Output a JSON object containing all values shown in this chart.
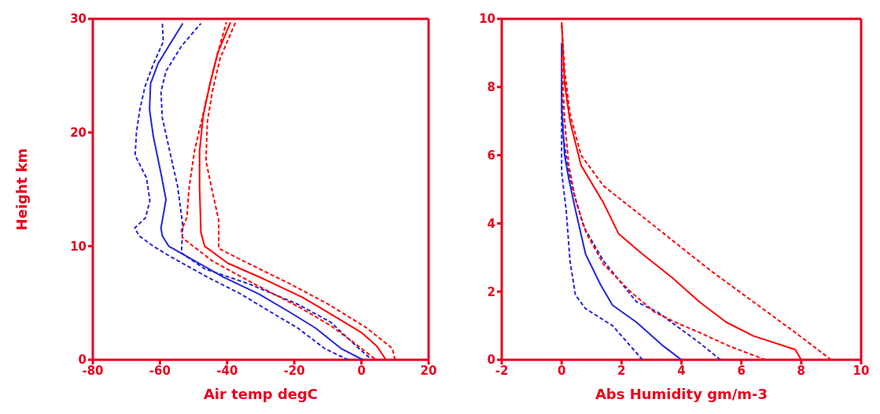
{
  "chart_data": [
    {
      "type": "line",
      "xlabel": "Air temp degC",
      "ylabel": "Height km",
      "xlim": [
        -80,
        20
      ],
      "xticks": [
        -80,
        -60,
        -40,
        -20,
        0,
        20
      ],
      "ylim": [
        0,
        30
      ],
      "yticks": [
        0,
        10,
        20,
        30
      ],
      "series": [
        {
          "color": "#2424d8",
          "line_style": "solid",
          "x": [
            0.4,
            -6.1,
            -13.7,
            -21.4,
            -30.6,
            -41.3,
            -52,
            -57.4,
            -59.3,
            -59.7,
            -58.2,
            -59.7,
            -62,
            -63.1,
            -62.8,
            -60.5,
            -57.4,
            -53.2
          ],
          "values": [
            0,
            1,
            2.8,
            4.2,
            5.8,
            7.3,
            9.1,
            10,
            10.9,
            11.6,
            14.1,
            16.4,
            19.7,
            22,
            24.3,
            26.1,
            27.6,
            29.6
          ]
        },
        {
          "color": "#2424d8",
          "line_style": "dashed",
          "x": [
            -4,
            -11,
            -19,
            -27,
            -36,
            -46,
            -57,
            -62,
            -66.2,
            -67.5,
            -64.3,
            -63,
            -64,
            -67.4,
            -67,
            -66,
            -64.5,
            -62,
            -59,
            -59.3
          ],
          "values": [
            0,
            1,
            2.8,
            4.2,
            5.8,
            7.3,
            9.1,
            10,
            10.9,
            11.6,
            12.5,
            14,
            16,
            18,
            20,
            22,
            24,
            26,
            28,
            29.7
          ]
        },
        {
          "color": "#2424d8",
          "line_style": "dashed",
          "x": [
            2.3,
            -1.5,
            -9.1,
            -19,
            -33.7,
            -46.7,
            -53.6,
            -53.2,
            -54.7,
            -56.6,
            -59.3,
            -59.7,
            -58.2,
            -53.6,
            -47.8
          ],
          "values": [
            0.2,
            1.2,
            3.3,
            4.9,
            6.7,
            8,
            9.4,
            11.8,
            15.2,
            17.7,
            21.3,
            23.6,
            25.4,
            27.6,
            29.6
          ]
        },
        {
          "color": "#ff0000",
          "line_style": "solid",
          "x": [
            7.3,
            4.6,
            0,
            -8.4,
            -17.6,
            -29,
            -39.8,
            -46.7,
            -47.8,
            -48.2,
            -48.2,
            -47.1,
            -45.1,
            -42.8,
            -39
          ],
          "values": [
            0,
            1.2,
            2.4,
            3.9,
            5.5,
            7.1,
            8.5,
            10,
            11.2,
            15.2,
            18.4,
            21.5,
            24.3,
            27,
            29.7
          ]
        },
        {
          "color": "#ff0000",
          "line_style": "dashed",
          "x": [
            3.9,
            -2.2,
            -9.1,
            -18.3,
            -32.1,
            -44.4,
            -53.2,
            -53.6,
            -52,
            -51.3,
            -49.7,
            -47.4,
            -45.1,
            -42.8,
            -40.2
          ],
          "values": [
            0.1,
            1.5,
            3,
            4.6,
            6.7,
            8.7,
            10.7,
            11.4,
            12.5,
            15.2,
            18.4,
            21.3,
            24.3,
            27,
            29.7
          ]
        },
        {
          "color": "#ff0000",
          "line_style": "dashed",
          "x": [
            10,
            9.2,
            1.6,
            -9.9,
            -21.4,
            -35.2,
            -42.5,
            -42.5,
            -44.4,
            -46.3,
            -45.9,
            -44.4,
            -42.1,
            -37.5
          ],
          "values": [
            0,
            1,
            2.8,
            4.9,
            6.7,
            8.7,
            9.8,
            12.3,
            14.8,
            17.5,
            20.9,
            23.6,
            26.5,
            29.7
          ]
        }
      ]
    },
    {
      "type": "line",
      "xlabel": "Abs Humidity gm/m-3",
      "xlim": [
        -2,
        10
      ],
      "xticks": [
        -2,
        0,
        2,
        4,
        6,
        8,
        10
      ],
      "ylim": [
        0,
        10
      ],
      "yticks": [
        0,
        2,
        4,
        6,
        8,
        10
      ],
      "series": [
        {
          "color": "#2424d8",
          "line_style": "solid",
          "x": [
            4.0,
            3.4,
            2.5,
            1.7,
            1.3,
            0.8,
            0.46,
            0.24,
            0.1,
            0,
            0
          ],
          "values": [
            0,
            0.4,
            1.1,
            1.6,
            2.2,
            3.1,
            4.4,
            5.3,
            6,
            7.4,
            9.3
          ]
        },
        {
          "color": "#2424d8",
          "line_style": "dashed",
          "x": [
            2.7,
            2.3,
            1.7,
            0.8,
            0.46,
            0.28,
            0.15,
            0,
            0
          ],
          "values": [
            0,
            0.4,
            1,
            1.5,
            1.9,
            2.9,
            4.4,
            5.5,
            7.4
          ]
        },
        {
          "color": "#2424d8",
          "line_style": "dashed",
          "x": [
            5.3,
            4.6,
            3.2,
            2.5,
            1.4,
            0.74,
            0.37,
            0.19,
            0.05,
            0
          ],
          "values": [
            0,
            0.5,
            1.4,
            1.7,
            2.9,
            3.9,
            5,
            5.7,
            6.6,
            8.1
          ]
        },
        {
          "color": "#ff0000",
          "line_style": "solid",
          "x": [
            8,
            7.8,
            6.4,
            5.5,
            4.6,
            3.7,
            2.7,
            1.9,
            1.4,
            0.65,
            0.28,
            0.1,
            0
          ],
          "values": [
            0,
            0.3,
            0.7,
            1.1,
            1.7,
            2.4,
            3.1,
            3.7,
            4.6,
            5.7,
            7,
            8.1,
            9.9
          ]
        },
        {
          "color": "#ff0000",
          "line_style": "dashed",
          "x": [
            6.8,
            5.6,
            4.6,
            3.8,
            3.1,
            2.3,
            1.4,
            0.83,
            0.46,
            0.24,
            0.1,
            0
          ],
          "values": [
            0,
            0.4,
            0.8,
            1.1,
            1.4,
            2,
            2.8,
            3.7,
            4.7,
            5.7,
            7,
            8.9
          ]
        },
        {
          "color": "#ff0000",
          "line_style": "dashed",
          "x": [
            9,
            7.8,
            6.4,
            5,
            3.7,
            2.7,
            1.4,
            0.65,
            0.28,
            0.1,
            0
          ],
          "values": [
            0,
            0.8,
            1.7,
            2.6,
            3.5,
            4.2,
            5.1,
            6,
            7.2,
            8.5,
            9.9
          ]
        }
      ]
    }
  ]
}
